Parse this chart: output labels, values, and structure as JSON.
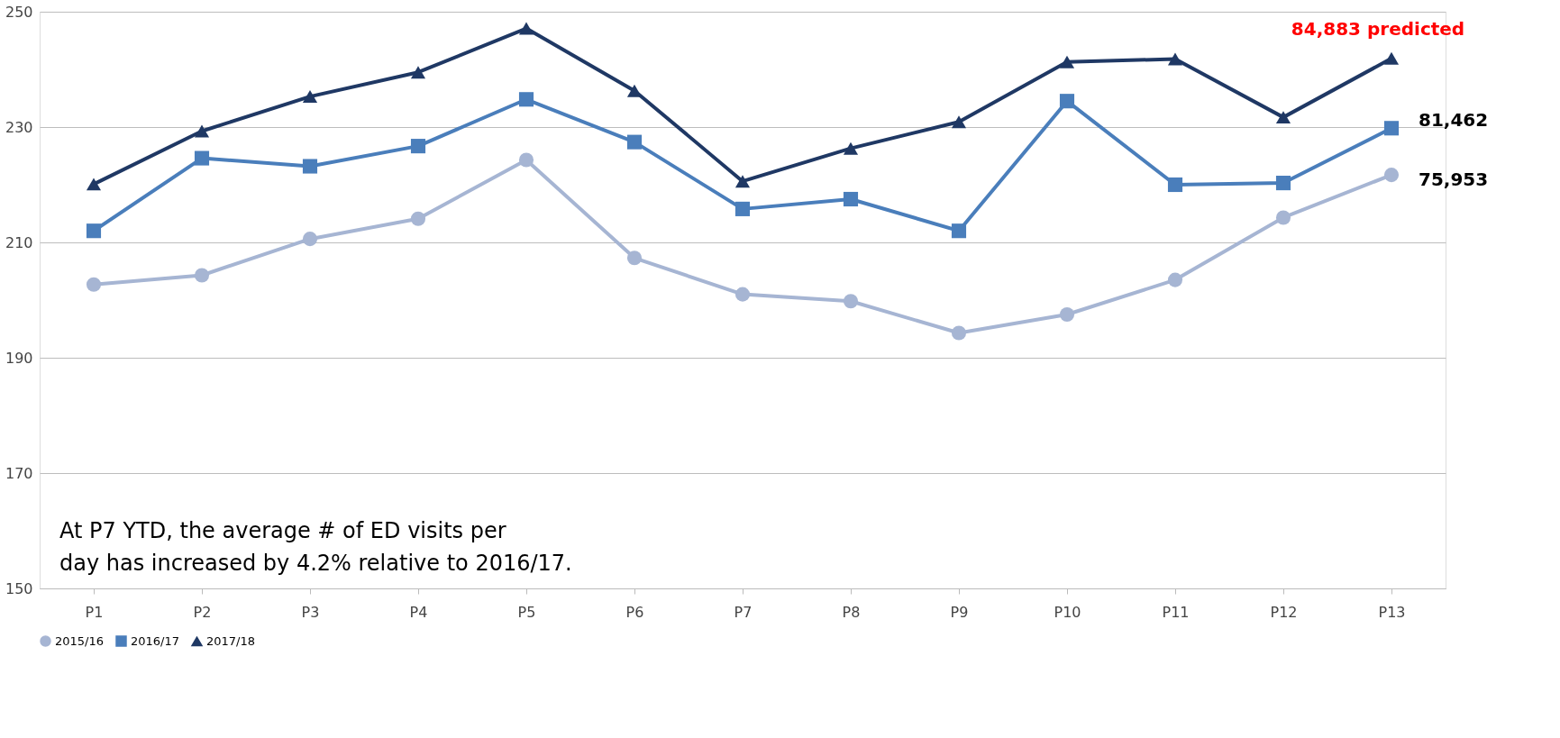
{
  "chart_data": {
    "type": "line",
    "categories": [
      "P1",
      "P2",
      "P3",
      "P4",
      "P5",
      "P6",
      "P7",
      "P8",
      "P9",
      "P10",
      "P11",
      "P12",
      "P13"
    ],
    "series": [
      {
        "name": "2015/16",
        "color": "#a6b5d3",
        "marker": "circle",
        "values": [
          202.7,
          204.3,
          210.6,
          214.1,
          224.3,
          207.3,
          201.0,
          199.8,
          194.3,
          197.5,
          203.5,
          214.3,
          221.7
        ]
      },
      {
        "name": "2016/17",
        "color": "#4a7ebb",
        "marker": "square",
        "values": [
          212.0,
          224.6,
          223.2,
          226.7,
          234.8,
          227.4,
          215.8,
          217.5,
          212.0,
          234.5,
          220.0,
          220.3,
          229.8
        ]
      },
      {
        "name": "2017/18",
        "color": "#1f3864",
        "marker": "triangle",
        "values": [
          220.1,
          229.3,
          235.3,
          239.5,
          247.1,
          236.3,
          220.6,
          226.3,
          230.9,
          241.3,
          241.8,
          231.7,
          241.9
        ]
      }
    ],
    "ylim": [
      150,
      250
    ],
    "yticks": [
      150,
      170,
      190,
      210,
      230,
      250
    ],
    "grid": "y",
    "legend": "bottom",
    "line_style": "solid",
    "annotations": [
      {
        "text": "84,883 predicted",
        "x": "P13",
        "y": 241.9
      },
      {
        "text": "81,462",
        "x": "P13",
        "y": 229.8
      },
      {
        "text": "75,953",
        "x": "P13",
        "y": 221.7
      },
      "At P7 YTD, the average # of ED visits per day has increased by 4.2% relative to 2016/17."
    ]
  }
}
